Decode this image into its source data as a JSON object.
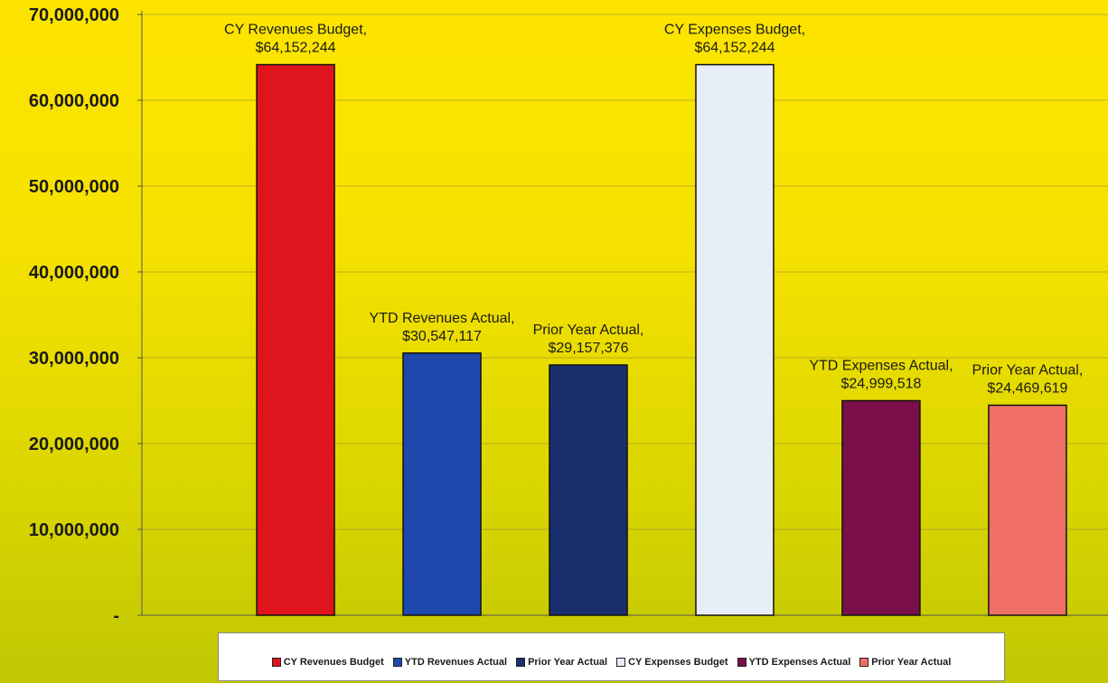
{
  "chart_data": {
    "type": "bar",
    "title": "",
    "xlabel": "",
    "ylabel": "",
    "ylim": [
      0,
      70000000
    ],
    "yticks": [
      {
        "value": 0,
        "label": "-"
      },
      {
        "value": 10000000,
        "label": "10,000,000"
      },
      {
        "value": 20000000,
        "label": "20,000,000"
      },
      {
        "value": 30000000,
        "label": "30,000,000"
      },
      {
        "value": 40000000,
        "label": "40,000,000"
      },
      {
        "value": 50000000,
        "label": "50,000,000"
      },
      {
        "value": 60000000,
        "label": "60,000,000"
      },
      {
        "value": 70000000,
        "label": "70,000,000"
      }
    ],
    "grid": true,
    "legend_position": "bottom",
    "bars": [
      {
        "name": "CY Revenues Budget",
        "value": 64152244,
        "label_name": "CY Revenues Budget,",
        "label_value": "$64,152,244",
        "color": "#e0141c"
      },
      {
        "name": "YTD Revenues Actual",
        "value": 30547117,
        "label_name": "YTD Revenues Actual,",
        "label_value": "$30,547,117",
        "color": "#1f48ad"
      },
      {
        "name": "Prior Year Actual",
        "value": 29157376,
        "label_name": "Prior Year Actual,",
        "label_value": "$29,157,376",
        "color": "#1b2f6e"
      },
      {
        "name": "CY Expenses Budget",
        "value": 64152244,
        "label_name": "CY Expenses Budget,",
        "label_value": "$64,152,244",
        "color": "#e8eef8"
      },
      {
        "name": "YTD Expenses Actual",
        "value": 24999518,
        "label_name": "YTD Expenses Actual,",
        "label_value": "$24,999,518",
        "color": "#7a0f4a"
      },
      {
        "name": "Prior Year Actual",
        "value": 24469619,
        "label_name": "Prior Year Actual,",
        "label_value": "$24,469,619",
        "color": "#f07068"
      }
    ]
  }
}
